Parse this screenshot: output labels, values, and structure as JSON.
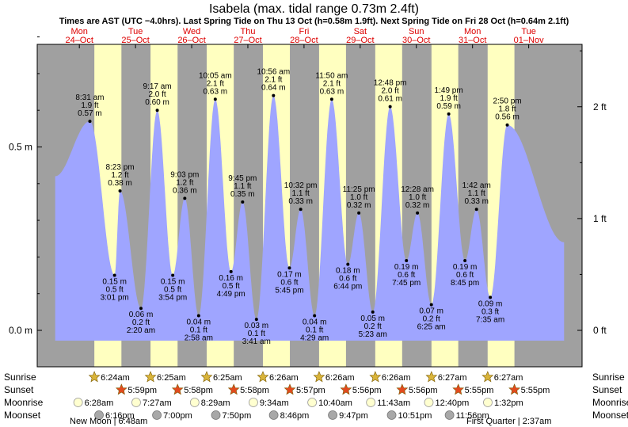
{
  "chart_data": {
    "type": "area",
    "title": "Isabela (max. tidal range 0.73m 2.4ft)",
    "subtitle": "Times are AST (UTC −4.0hrs). Last Spring Tide on Thu 13 Oct (h=0.58m 1.9ft). Next Spring Tide on Fri 28 Oct (h=0.64m 2.1ft)",
    "days": [
      {
        "dow": "Mon",
        "date": "24–Oct",
        "color": "#dd0000"
      },
      {
        "dow": "Tue",
        "date": "25–Oct",
        "color": "#dd0000"
      },
      {
        "dow": "Wed",
        "date": "26–Oct",
        "color": "#dd0000"
      },
      {
        "dow": "Thu",
        "date": "27–Oct",
        "color": "#dd0000"
      },
      {
        "dow": "Fri",
        "date": "28–Oct",
        "color": "#dd0000"
      },
      {
        "dow": "Sat",
        "date": "29–Oct",
        "color": "#dd0000"
      },
      {
        "dow": "Sun",
        "date": "30–Oct",
        "color": "#dd0000"
      },
      {
        "dow": "Mon",
        "date": "31–Oct",
        "color": "#dd0000"
      },
      {
        "dow": "Tue",
        "date": "01–Nov",
        "color": "#dd0000"
      }
    ],
    "y_left_ticks": [
      {
        "v": 0.0,
        "label": "0.0 m"
      },
      {
        "v": 0.5,
        "label": "0.5 m"
      }
    ],
    "y_right_ticks": [
      {
        "v": 0.0,
        "label": "0 ft"
      },
      {
        "v": 0.3048,
        "label": "1 ft"
      },
      {
        "v": 0.6096,
        "label": "2 ft"
      }
    ],
    "ylim": [
      -0.1,
      0.81
    ],
    "xlim_days": [
      -0.75,
      8.95
    ],
    "tide_start": {
      "d": -0.43,
      "h": 0.42
    },
    "tide_end": {
      "d": 8.63,
      "h": 0.24
    },
    "extremes": [
      {
        "d": 0.187,
        "h": 0.57,
        "kind": "high",
        "time": "8:31 am",
        "ft": "1.9 ft",
        "m": "0.57 m"
      },
      {
        "d": 0.627,
        "h": 0.15,
        "kind": "low",
        "time": "3:01 pm",
        "ft": "0.5 ft",
        "m": "0.15 m"
      },
      {
        "d": 0.724,
        "h": 0.38,
        "kind": "high",
        "time": "8:23 pm",
        "ft": "1.2 ft",
        "m": "0.38 m"
      },
      {
        "d": 1.097,
        "h": 0.06,
        "kind": "low",
        "time": "2:20 am",
        "ft": "0.2 ft",
        "m": "0.06 m"
      },
      {
        "d": 1.387,
        "h": 0.6,
        "kind": "high",
        "time": "9:17 am",
        "ft": "2.0 ft",
        "m": "0.60 m"
      },
      {
        "d": 1.663,
        "h": 0.15,
        "kind": "low",
        "time": "3:54 pm",
        "ft": "0.5 ft",
        "m": "0.15 m"
      },
      {
        "d": 1.877,
        "h": 0.36,
        "kind": "high",
        "time": "9:03 pm",
        "ft": "1.2 ft",
        "m": "0.36 m"
      },
      {
        "d": 2.124,
        "h": 0.04,
        "kind": "low",
        "time": "2:58 am",
        "ft": "0.1 ft",
        "m": "0.04 m"
      },
      {
        "d": 2.42,
        "h": 0.63,
        "kind": "high",
        "time": "10:05 am",
        "ft": "2.1 ft",
        "m": "0.63 m"
      },
      {
        "d": 2.7,
        "h": 0.16,
        "kind": "low",
        "time": "4:49 pm",
        "ft": "0.5 ft",
        "m": "0.16 m"
      },
      {
        "d": 2.906,
        "h": 0.35,
        "kind": "high",
        "time": "9:45 pm",
        "ft": "1.1 ft",
        "m": "0.35 m"
      },
      {
        "d": 3.153,
        "h": 0.03,
        "kind": "low",
        "time": "3:41 am",
        "ft": "0.1 ft",
        "m": "0.03 m"
      },
      {
        "d": 3.456,
        "h": 0.64,
        "kind": "high",
        "time": "10:56 am",
        "ft": "2.1 ft",
        "m": "0.64 m"
      },
      {
        "d": 3.74,
        "h": 0.17,
        "kind": "low",
        "time": "5:45 pm",
        "ft": "0.6 ft",
        "m": "0.17 m"
      },
      {
        "d": 3.94,
        "h": 0.33,
        "kind": "high",
        "time": "10:32 pm",
        "ft": "1.1 ft",
        "m": "0.33 m"
      },
      {
        "d": 4.187,
        "h": 0.04,
        "kind": "low",
        "time": "4:29 am",
        "ft": "0.1 ft",
        "m": "0.04 m"
      },
      {
        "d": 4.493,
        "h": 0.63,
        "kind": "high",
        "time": "11:50 am",
        "ft": "2.1 ft",
        "m": "0.63 m"
      },
      {
        "d": 4.781,
        "h": 0.18,
        "kind": "low",
        "time": "6:44 pm",
        "ft": "0.6 ft",
        "m": "0.18 m"
      },
      {
        "d": 4.976,
        "h": 0.32,
        "kind": "high",
        "time": "11:25 pm",
        "ft": "1.0 ft",
        "m": "0.32 m"
      },
      {
        "d": 5.224,
        "h": 0.05,
        "kind": "low",
        "time": "5:23 am",
        "ft": "0.2 ft",
        "m": "0.05 m"
      },
      {
        "d": 5.533,
        "h": 0.61,
        "kind": "high",
        "time": "12:48 pm",
        "ft": "2.0 ft",
        "m": "0.61 m"
      },
      {
        "d": 5.823,
        "h": 0.19,
        "kind": "low",
        "time": "7:45 pm",
        "ft": "0.6 ft",
        "m": "0.19 m"
      },
      {
        "d": 6.019,
        "h": 0.32,
        "kind": "high",
        "time": "12:28 am",
        "ft": "1.0 ft",
        "m": "0.32 m"
      },
      {
        "d": 6.267,
        "h": 0.07,
        "kind": "low",
        "time": "6:25 am",
        "ft": "0.2 ft",
        "m": "0.07 m"
      },
      {
        "d": 6.576,
        "h": 0.59,
        "kind": "high",
        "time": "1:49 pm",
        "ft": "1.9 ft",
        "m": "0.59 m"
      },
      {
        "d": 6.865,
        "h": 0.19,
        "kind": "low",
        "time": "8:45 pm",
        "ft": "0.6 ft",
        "m": "0.19 m"
      },
      {
        "d": 7.071,
        "h": 0.33,
        "kind": "high",
        "time": "1:42 am",
        "ft": "1.1 ft",
        "m": "0.33 m"
      },
      {
        "d": 7.316,
        "h": 0.09,
        "kind": "low",
        "time": "7:35 am",
        "ft": "0.3 ft",
        "m": "0.09 m"
      },
      {
        "d": 7.618,
        "h": 0.56,
        "kind": "high",
        "time": "2:50 pm",
        "ft": "1.8 ft",
        "m": "0.56 m"
      }
    ],
    "sun": [
      {
        "rise": "6:24am",
        "set": "5:59pm",
        "rise_d": 1.267,
        "set_d": 1.749
      },
      {
        "rise": "6:25am",
        "set": "5:58pm",
        "rise_d": 2.267,
        "set_d": 2.749
      },
      {
        "rise": "6:25am",
        "set": "5:58pm",
        "rise_d": 3.267,
        "set_d": 3.749
      },
      {
        "rise": "6:26am",
        "set": "5:57pm",
        "rise_d": 4.268,
        "set_d": 4.748
      },
      {
        "rise": "6:26am",
        "set": "5:56pm",
        "rise_d": 5.268,
        "set_d": 5.747
      },
      {
        "rise": "6:26am",
        "set": "5:56pm",
        "rise_d": 6.268,
        "set_d": 6.747
      },
      {
        "rise": "6:27am",
        "set": "5:55pm",
        "rise_d": 7.269,
        "set_d": 7.746
      },
      {
        "rise": "6:27am",
        "set": "5:55pm",
        "rise_d": 8.269,
        "set_d": 8.746
      }
    ],
    "sunrise_label": "Sunrise",
    "sunset_label": "Sunset",
    "moonrise_label": "Moonrise",
    "moonset_label": "Moonset",
    "moonrise": [
      {
        "d": 0.978,
        "t": "6:28am"
      },
      {
        "d": 2.012,
        "t": "7:27am"
      },
      {
        "d": 3.053,
        "t": "8:29am"
      },
      {
        "d": 4.098,
        "t": "9:34am"
      },
      {
        "d": 5.144,
        "t": "10:40am"
      },
      {
        "d": 6.188,
        "t": "11:43am"
      },
      {
        "d": 7.222,
        "t": "12:40pm"
      },
      {
        "d": 8.272,
        "t": "1:32pm"
      }
    ],
    "moonset": [
      {
        "d": 1.35,
        "t": "6:16pm"
      },
      {
        "d": 2.38,
        "t": "7:00pm"
      },
      {
        "d": 3.43,
        "t": "7:50pm"
      },
      {
        "d": 4.46,
        "t": "8:46pm"
      },
      {
        "d": 5.51,
        "t": "9:47pm"
      },
      {
        "d": 6.56,
        "t": "10:51pm"
      },
      {
        "d": 7.59,
        "t": "11:56pm"
      }
    ],
    "moon_phases": [
      {
        "label": "New Moon | 6:48am",
        "align": "left"
      },
      {
        "label": "First Quarter | 2:37am",
        "align": "right"
      }
    ],
    "colors": {
      "night": "#a0a0a0",
      "day": "#ffffc0",
      "water": "#9fa5ff",
      "sunsym": "#d9b43a",
      "sunsetsym": "#e24a1e",
      "moonrise_fill": "#ffffd0",
      "moonset_fill": "#a8a8a8"
    }
  }
}
